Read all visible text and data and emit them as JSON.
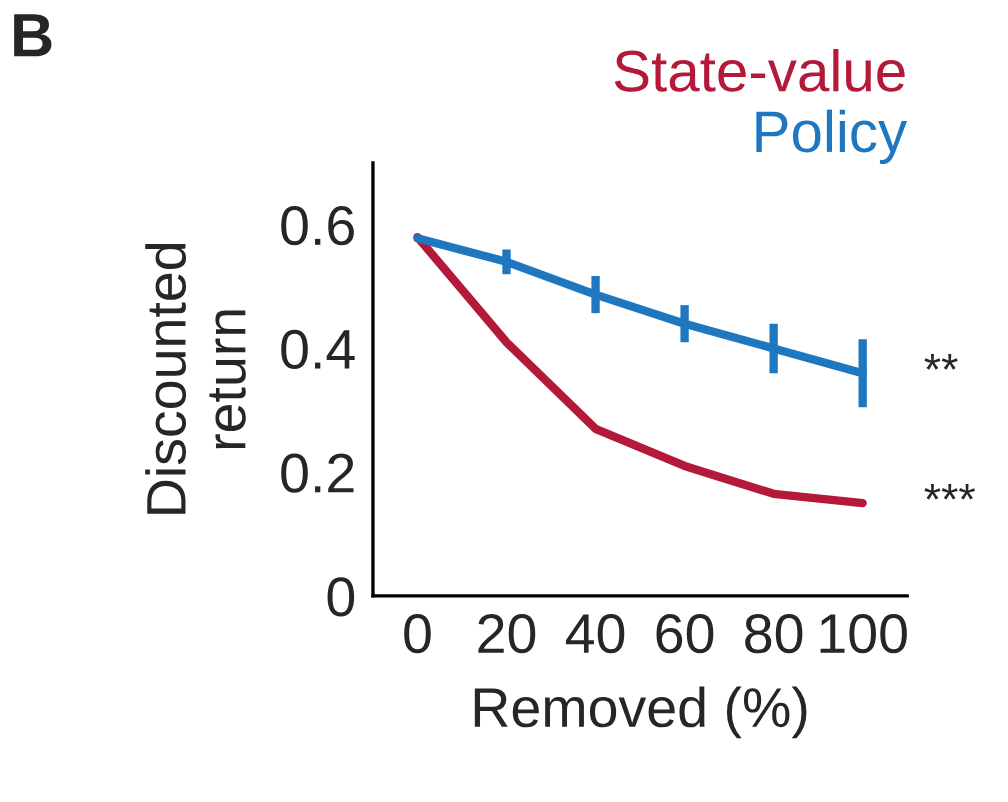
{
  "chart_data": {
    "type": "line",
    "xlabel": "Removed (%)",
    "ylabel": "Discounted\nreturn",
    "x": [
      0,
      20,
      40,
      60,
      80,
      100
    ],
    "series": [
      {
        "name": "State-value",
        "color": "#b5193a",
        "values": [
          0.58,
          0.41,
          0.27,
          0.21,
          0.165,
          0.15
        ]
      },
      {
        "name": "Policy",
        "color": "#1f77c0",
        "values": [
          0.578,
          0.54,
          0.487,
          0.44,
          0.4,
          0.36
        ],
        "errors": [
          null,
          0.02,
          0.03,
          0.03,
          0.04,
          0.055
        ]
      }
    ],
    "xlim": [
      -10,
      110
    ],
    "ylim": [
      0,
      0.7
    ],
    "xticks": [
      0,
      20,
      40,
      60,
      80,
      100
    ],
    "yticks": [
      0,
      0.2,
      0.4,
      0.6
    ],
    "legend": "top right",
    "grid": false,
    "annotations": [
      "B",
      {
        "text": "**",
        "x": 100,
        "y": 0.36
      },
      {
        "text": "***",
        "x": 100,
        "y": 0.15
      }
    ]
  }
}
